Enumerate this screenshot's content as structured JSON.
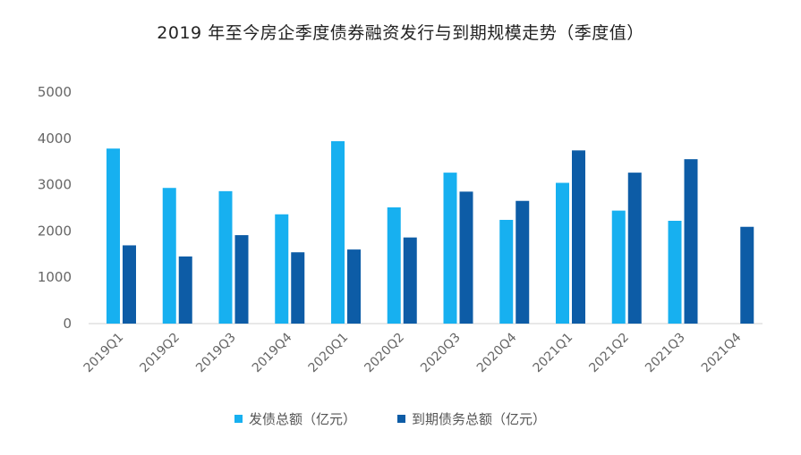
{
  "chart_data": {
    "type": "bar",
    "title": "2019 年至今房企季度债券融资发行与到期规模走势（季度值）",
    "categories": [
      "2019Q1",
      "2019Q2",
      "2019Q3",
      "2019Q4",
      "2020Q1",
      "2020Q2",
      "2020Q3",
      "2020Q4",
      "2021Q1",
      "2021Q2",
      "2021Q3",
      "2021Q4"
    ],
    "series": [
      {
        "name": "发债总额（亿元）",
        "color": "#17b0f0",
        "values": [
          3780,
          2930,
          2860,
          2360,
          3940,
          2510,
          3260,
          2240,
          3040,
          2440,
          2220,
          null
        ]
      },
      {
        "name": "到期债务总额（亿元）",
        "color": "#0d5ca6",
        "values": [
          1690,
          1450,
          1910,
          1540,
          1600,
          1860,
          2850,
          2650,
          3740,
          3260,
          3550,
          2090
        ]
      }
    ],
    "yticks": [
      0,
      1000,
      2000,
      3000,
      4000,
      5000
    ],
    "ylim": [
      0,
      5000
    ],
    "grid": false,
    "legend_position": "bottom"
  }
}
